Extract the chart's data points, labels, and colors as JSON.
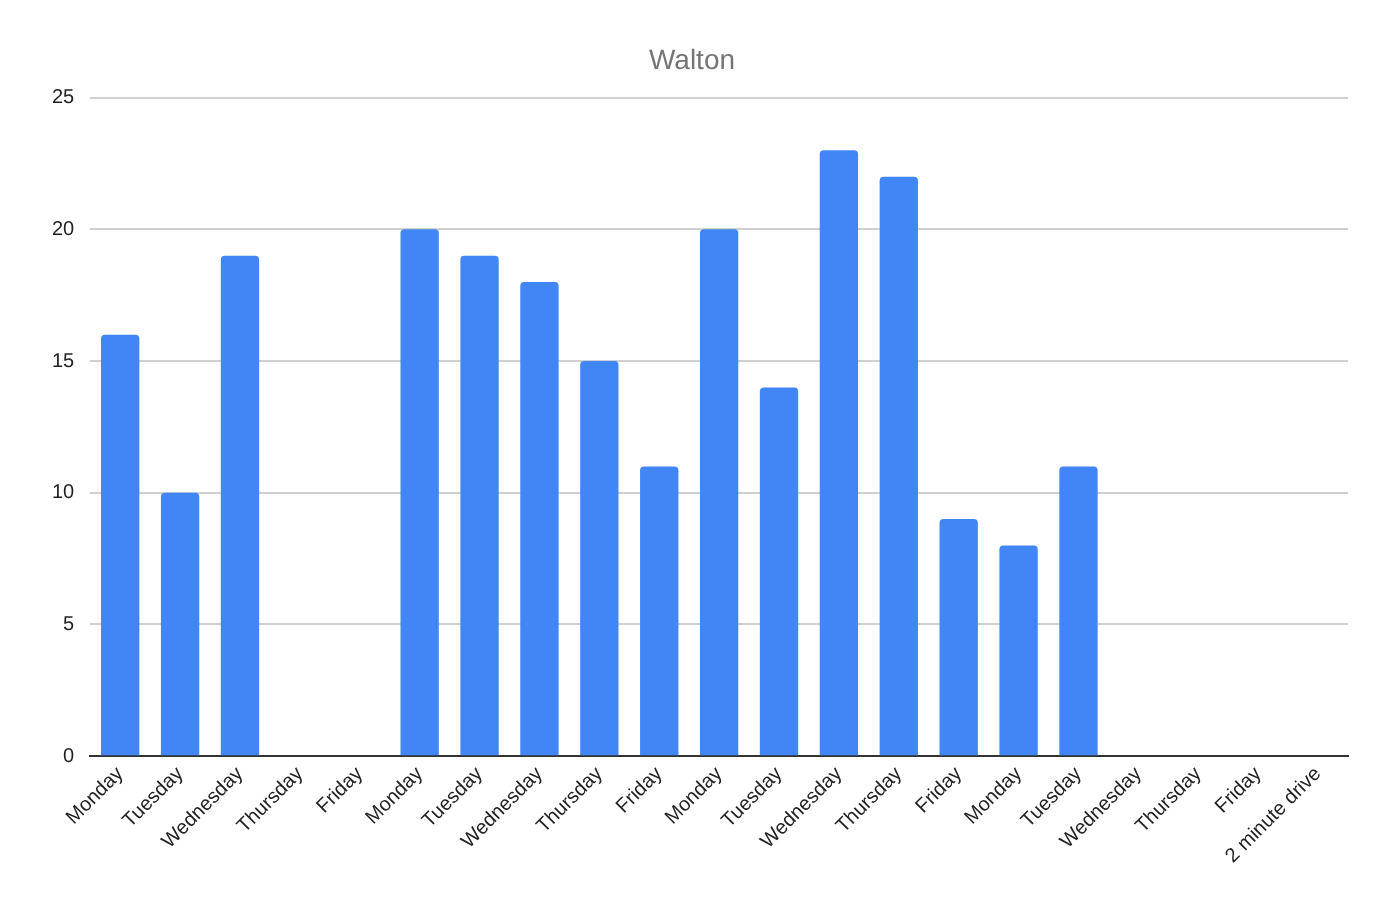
{
  "chart_data": {
    "type": "bar",
    "title": "Walton",
    "categories": [
      "Monday",
      "Tuesday",
      "Wednesday",
      "Thursday",
      "Friday",
      "Monday",
      "Tuesday",
      "Wednesday",
      "Thursday",
      "Friday",
      "Monday",
      "Tuesday",
      "Wednesday",
      "Thursday",
      "Friday",
      "Monday",
      "Tuesday",
      "Wednesday",
      "Thursday",
      "Friday",
      "2 minute drive"
    ],
    "values": [
      16,
      10,
      19,
      null,
      null,
      20,
      19,
      18,
      15,
      11,
      20,
      14,
      23,
      22,
      9,
      8,
      11,
      null,
      null,
      null,
      null
    ],
    "color": "#4285f4",
    "ylim": [
      0,
      25
    ],
    "yticks": [
      0,
      5,
      10,
      15,
      20,
      25
    ],
    "grid": "y",
    "legend": false
  }
}
